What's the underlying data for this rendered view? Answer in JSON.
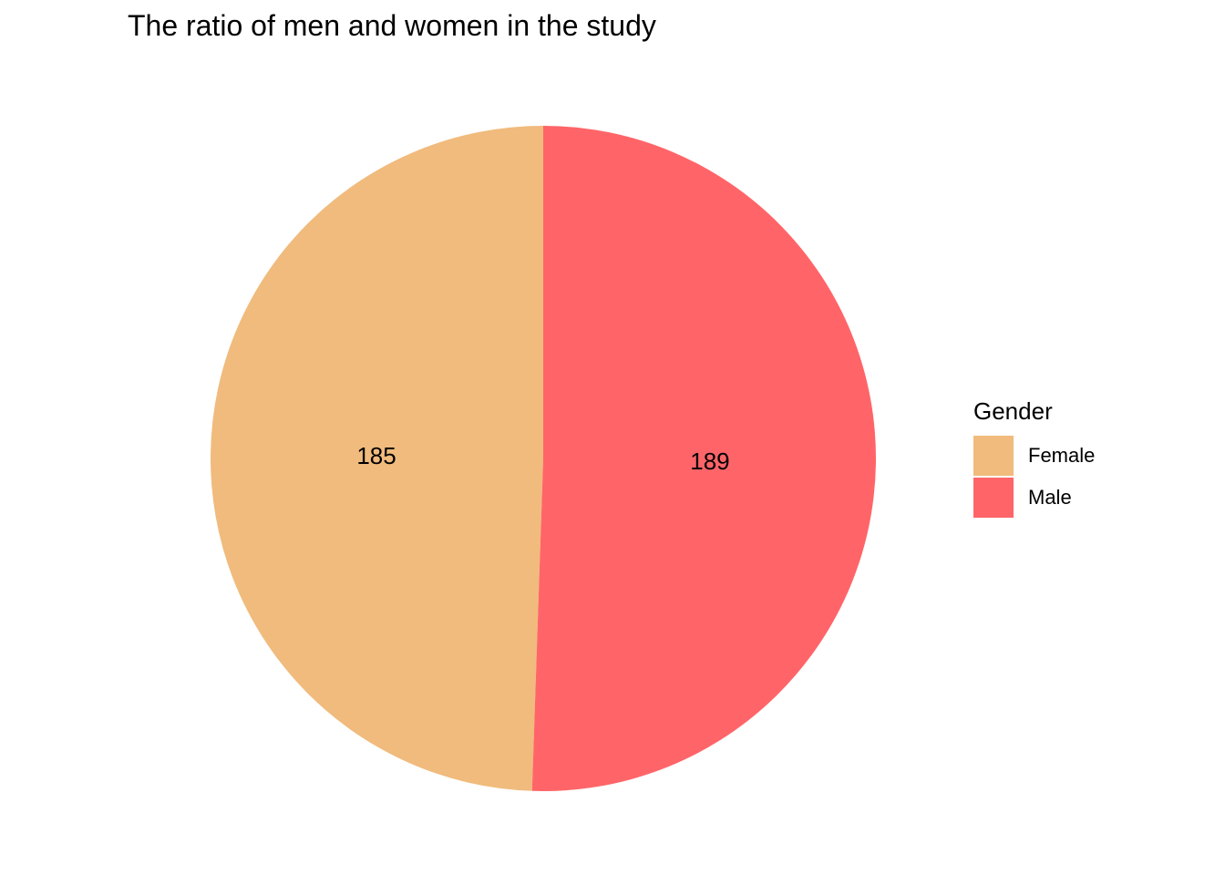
{
  "chart_data": {
    "type": "pie",
    "title": "The ratio of men and women in the study",
    "categories": [
      "Female",
      "Male"
    ],
    "values": [
      185,
      189
    ],
    "data_labels": [
      "185",
      "189"
    ],
    "colors": [
      "#F0BB7D",
      "#FF6568"
    ],
    "legend": {
      "title": "Gender",
      "placement": "right",
      "entries": [
        "Female",
        "Male"
      ]
    }
  }
}
